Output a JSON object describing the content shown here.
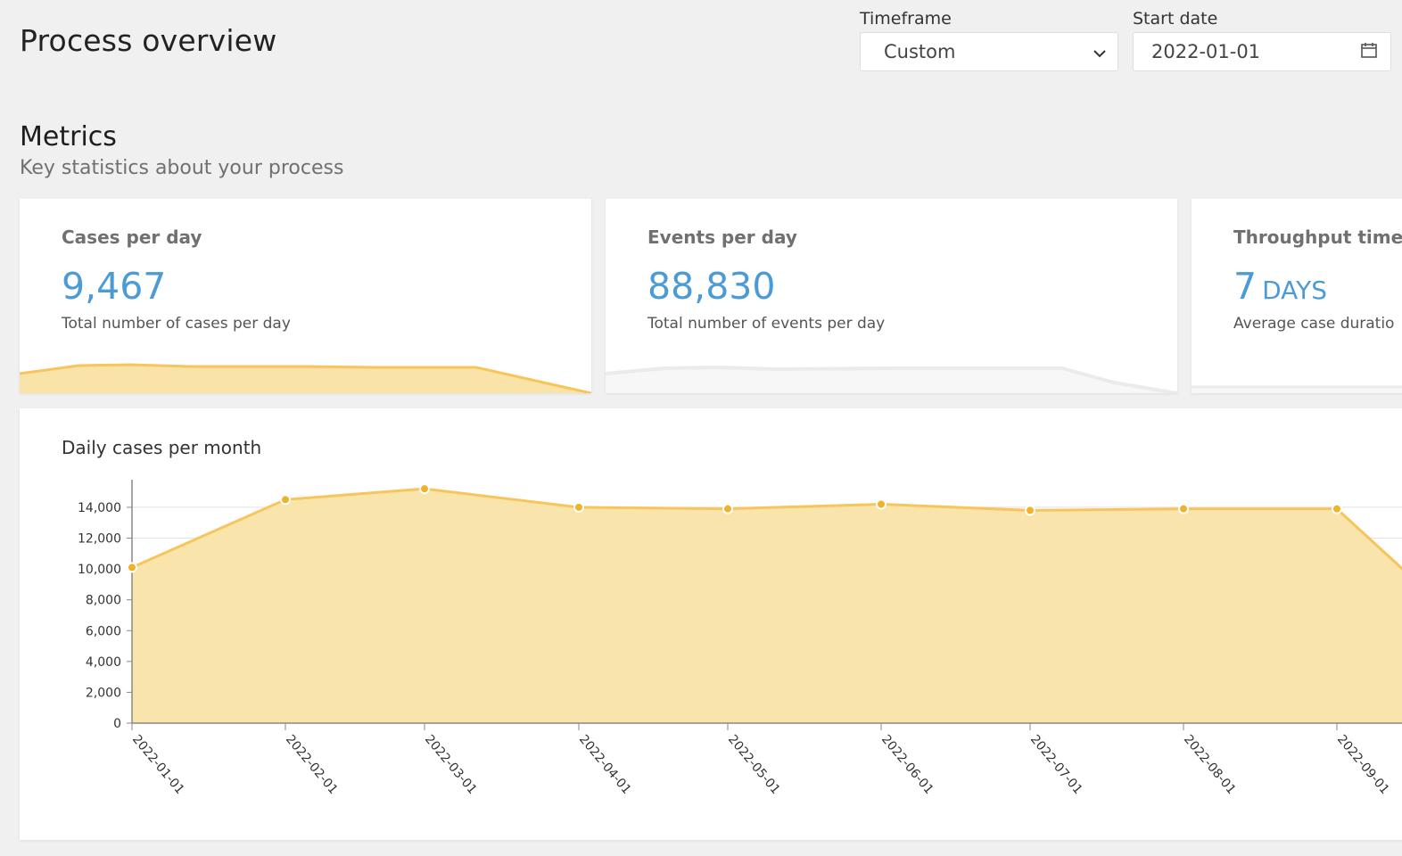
{
  "header": {
    "title": "Process overview",
    "timeframe_label": "Timeframe",
    "timeframe_value": "Custom",
    "start_date_label": "Start date",
    "start_date_value": "2022-01-01"
  },
  "metrics": {
    "title": "Metrics",
    "subtitle": "Key statistics about your process",
    "cards": [
      {
        "title": "Cases per day",
        "value": "9,467",
        "unit": "",
        "description": "Total number of cases per day",
        "spark_color": "#f7c55c"
      },
      {
        "title": "Events per day",
        "value": "88,830",
        "unit": "",
        "description": "Total number of events per day",
        "spark_color": "#e8e8e8"
      },
      {
        "title": "Throughput time",
        "value": "7",
        "unit": "DAYS",
        "description": "Average case duratio",
        "spark_color": "#e8e8e8"
      }
    ]
  },
  "colors": {
    "accent_blue": "#4b9bd6",
    "area_fill": "#f9e3a8",
    "line": "#f7c55c",
    "marker": "#efb229"
  },
  "icons": {
    "dropdown": "chevron-down-icon",
    "date": "calendar-icon"
  },
  "chart_data": {
    "type": "area",
    "title": "Daily cases per month",
    "x": [
      "2022-01-01",
      "2022-02-01",
      "2022-03-01",
      "2022-04-01",
      "2022-05-01",
      "2022-06-01",
      "2022-07-01",
      "2022-08-01",
      "2022-09-01"
    ],
    "series": [
      {
        "values": [
          10100,
          14500,
          15200,
          14000,
          13900,
          14200,
          13800,
          13900,
          13900
        ]
      }
    ],
    "y_ticks": [
      0,
      2000,
      4000,
      6000,
      8000,
      10000,
      12000,
      14000
    ],
    "y_tick_labels": [
      "0",
      "2,000",
      "4,000",
      "6,000",
      "8,000",
      "10,000",
      "12,000",
      "14,000"
    ],
    "ylim": [
      0,
      15500
    ],
    "grid": true
  }
}
